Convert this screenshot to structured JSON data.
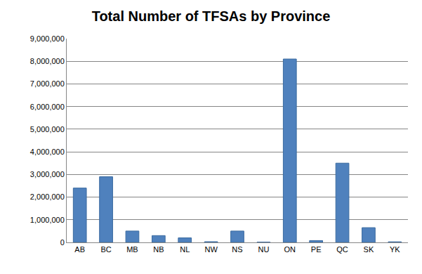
{
  "chart_data": {
    "type": "bar",
    "title": "Total Number of TFSAs by Province",
    "categories": [
      "AB",
      "BC",
      "MB",
      "NB",
      "NL",
      "NW",
      "NS",
      "NU",
      "ON",
      "PE",
      "QC",
      "SK",
      "YK"
    ],
    "values": [
      2400000,
      2900000,
      500000,
      300000,
      200000,
      30000,
      500000,
      10000,
      8100000,
      80000,
      3500000,
      650000,
      25000
    ],
    "color": "#4f81bd",
    "ylim": [
      0,
      9000000
    ],
    "yticks": [
      0,
      {
        "value": 1000000,
        "label": "1,000,000"
      },
      {
        "value": 2000000,
        "label": "2,000,000"
      },
      {
        "value": 3000000,
        "label": "3,000,000"
      },
      {
        "value": 4000000,
        "label": "4,000,000"
      },
      {
        "value": 5000000,
        "label": "5,000,000"
      },
      {
        "value": 6000000,
        "label": "6,000,000"
      },
      {
        "value": 7000000,
        "label": "7,000,000"
      },
      {
        "value": 8000000,
        "label": "8,000,000"
      },
      {
        "value": 9000000,
        "label": "9,000,000"
      }
    ],
    "grid": true
  }
}
